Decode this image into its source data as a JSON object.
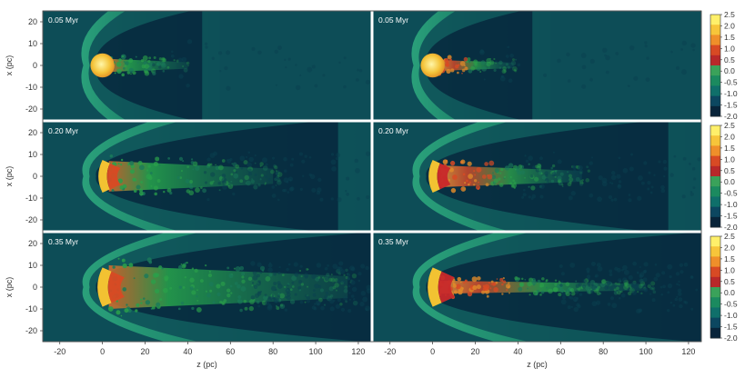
{
  "figure": {
    "x_axis_label": "z (pc)",
    "y_axis_label": "x (pc)",
    "x_ticks": [
      "-20",
      "0",
      "20",
      "40",
      "60",
      "80",
      "100",
      "120"
    ],
    "y_ticks": [
      "20",
      "10",
      "0",
      "-10",
      "-20"
    ],
    "x_tick_values": [
      -20,
      0,
      20,
      40,
      60,
      80,
      100,
      120
    ],
    "y_tick_values": [
      20,
      10,
      0,
      -10,
      -20
    ],
    "x_range": [
      -28,
      126
    ],
    "y_range": [
      -25,
      25
    ],
    "colorbar": {
      "ticks": [
        "2.5",
        "2.0",
        "1.5",
        "1.0",
        "0.5",
        "0.0",
        "-0.5",
        "-1.0",
        "-1.5",
        "-2.0"
      ],
      "colors": [
        "#fff06a",
        "#f7c53a",
        "#ef8f2a",
        "#d84a24",
        "#b8282a",
        "#3aa25a",
        "#1b8a5f",
        "#0f6f6a",
        "#0c4760",
        "#08243a"
      ]
    },
    "rows": [
      {
        "time": "0.05 Myr"
      },
      {
        "time": "0.20 Myr"
      },
      {
        "time": "0.35 Myr"
      }
    ],
    "panel_colors": {
      "background": "#0d4d57",
      "shell": "#1e8a6a",
      "cavity": "#06223a",
      "core": "#f2c232",
      "mix_left": "#22a04a",
      "mix_right": "#d0532a"
    },
    "panels": [
      {
        "row": 0,
        "col": 0,
        "tail_length": 40,
        "tail_width": 3,
        "cavity_len": 55
      },
      {
        "row": 0,
        "col": 1,
        "tail_length": 38,
        "tail_width": 2.5,
        "cavity_len": 55
      },
      {
        "row": 1,
        "col": 0,
        "tail_length": 80,
        "tail_width": 7,
        "cavity_len": 130
      },
      {
        "row": 1,
        "col": 1,
        "tail_length": 70,
        "tail_width": 5,
        "cavity_len": 130
      },
      {
        "row": 2,
        "col": 0,
        "tail_length": 115,
        "tail_width": 10,
        "cavity_len": 160
      },
      {
        "row": 2,
        "col": 1,
        "tail_length": 100,
        "tail_width": 3,
        "cavity_len": 160
      }
    ]
  }
}
